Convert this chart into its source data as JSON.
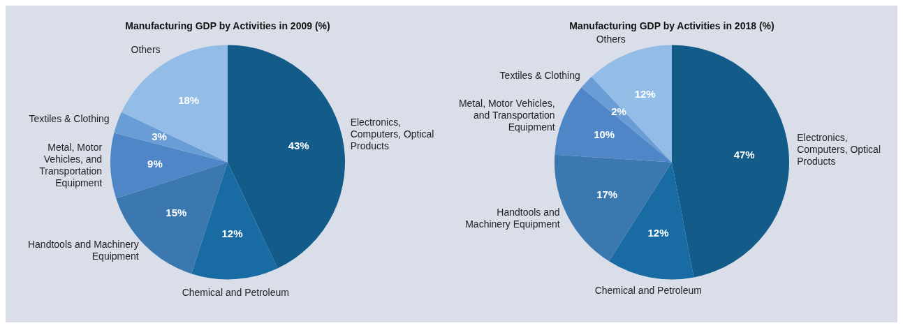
{
  "chart_data": [
    {
      "type": "pie",
      "title": "Manufacturing GDP by Activities in 2009 (%)",
      "categories": [
        "Electronics, Computers, Optical Products",
        "Chemical and Petroleum",
        "Handtools and Machinery Equipment",
        "Metal, Motor Vehicles, and Transportation Equipment",
        "Textiles & Clothing",
        "Others"
      ],
      "values": [
        43,
        12,
        15,
        9,
        3,
        18
      ],
      "value_labels": [
        "43%",
        "12%",
        "15%",
        "9%",
        "3%",
        "18%"
      ],
      "colors": [
        "#135b89",
        "#186ca3",
        "#3b78af",
        "#4f86c7",
        "#6a9dd6",
        "#93bde6"
      ]
    },
    {
      "type": "pie",
      "title": "Manufacturing GDP by Activities in 2018 (%)",
      "categories": [
        "Electronics, Computers, Optical Products",
        "Chemical and Petroleum",
        "Handtools and Machinery Equipment",
        "Metal, Motor Vehicles, and Transportation Equipment",
        "Textiles & Clothing",
        "Others"
      ],
      "values": [
        47,
        12,
        17,
        10,
        2,
        12
      ],
      "value_labels": [
        "47%",
        "12%",
        "17%",
        "10%",
        "2%",
        "12%"
      ],
      "colors": [
        "#135b89",
        "#186ca3",
        "#3b78af",
        "#4f86c7",
        "#6a9dd6",
        "#93bde6"
      ]
    }
  ]
}
